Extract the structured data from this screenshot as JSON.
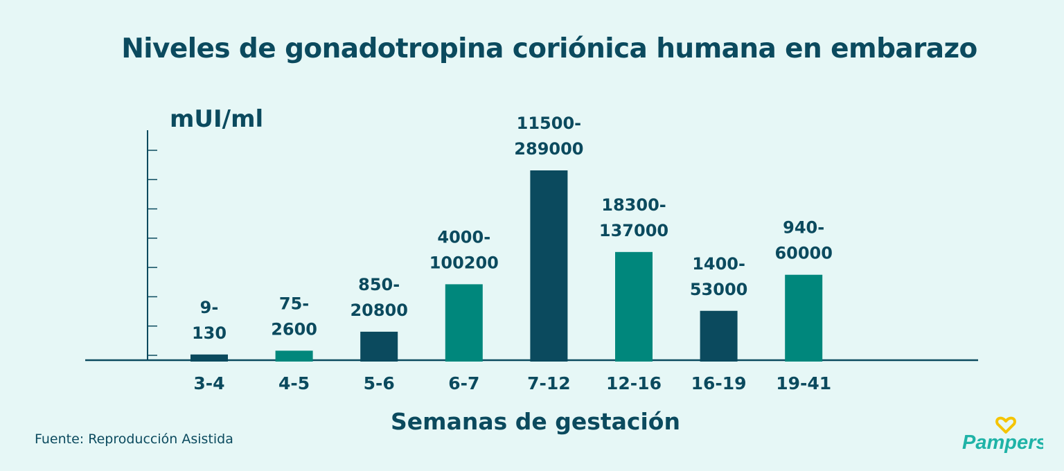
{
  "header": {
    "title": "Niveles de gonadotropina coriónica humana en embarazo"
  },
  "footer": {
    "source": "Fuente: Reproducción Asistida",
    "brand": "Pampers"
  },
  "colors": {
    "dark": "#0b4a5e",
    "teal": "#00877c",
    "background": "#e6f7f6",
    "logo_heart": "#f5c400",
    "logo_text": "#1fb3a7"
  },
  "chart_data": {
    "type": "bar",
    "title": "Niveles de gonadotropina coriónica humana en embarazo",
    "ylabel": "mUI/ml",
    "xlabel": "Semanas de gestación",
    "categories": [
      "3-4",
      "4-5",
      "5-6",
      "6-7",
      "7-12",
      "12-16",
      "16-19",
      "19-41"
    ],
    "labels": [
      [
        "9-",
        "130"
      ],
      [
        "75-",
        "2600"
      ],
      [
        "850-",
        "20800"
      ],
      [
        "4000-",
        "100200"
      ],
      [
        "11500-",
        "289000"
      ],
      [
        "18300-",
        "137000"
      ],
      [
        "1400-",
        "53000"
      ],
      [
        "940-",
        "60000"
      ]
    ],
    "ranges": [
      [
        9,
        130
      ],
      [
        75,
        2600
      ],
      [
        850,
        20800
      ],
      [
        4000,
        100200
      ],
      [
        11500,
        289000
      ],
      [
        18300,
        137000
      ],
      [
        1400,
        53000
      ],
      [
        940,
        60000
      ]
    ],
    "relative_heights": [
      0.03,
      0.05,
      0.15,
      0.4,
      1.0,
      0.57,
      0.26,
      0.45
    ],
    "bar_colors": [
      "#0b4a5e",
      "#00877c",
      "#0b4a5e",
      "#00877c",
      "#0b4a5e",
      "#00877c",
      "#0b4a5e",
      "#00877c"
    ],
    "y_ticks": 8,
    "legend": "none",
    "grid": false
  }
}
